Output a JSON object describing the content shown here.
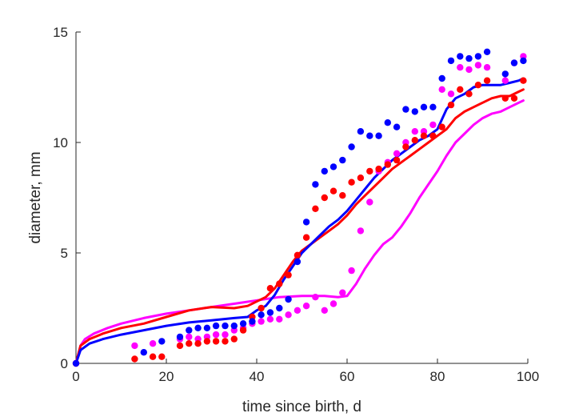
{
  "chart_data": {
    "type": "scatter",
    "xlabel": "time since birth, d",
    "ylabel": "diameter, mm",
    "xlim": [
      0,
      100
    ],
    "ylim": [
      0,
      15
    ],
    "xticks": [
      0,
      20,
      40,
      60,
      80,
      100
    ],
    "yticks": [
      0,
      5,
      10,
      15
    ],
    "grid": false,
    "series": [
      {
        "color": "#ff00ff",
        "points": [
          [
            0,
            0
          ],
          [
            13,
            0.8
          ],
          [
            17,
            0.9
          ],
          [
            23,
            1.1
          ],
          [
            25,
            1.2
          ],
          [
            27,
            1.1
          ],
          [
            29,
            1.2
          ],
          [
            31,
            1.3
          ],
          [
            33,
            1.3
          ],
          [
            35,
            1.5
          ],
          [
            37,
            1.6
          ],
          [
            39,
            1.8
          ],
          [
            41,
            1.9
          ],
          [
            43,
            2.0
          ],
          [
            45,
            2.0
          ],
          [
            47,
            2.2
          ],
          [
            49,
            2.4
          ],
          [
            51,
            2.6
          ],
          [
            53,
            3.0
          ],
          [
            55,
            2.4
          ],
          [
            57,
            2.7
          ],
          [
            59,
            3.2
          ],
          [
            61,
            4.2
          ],
          [
            63,
            6.0
          ],
          [
            65,
            7.3
          ],
          [
            67,
            8.7
          ],
          [
            69,
            9.1
          ],
          [
            71,
            9.5
          ],
          [
            73,
            10.0
          ],
          [
            75,
            10.5
          ],
          [
            77,
            10.5
          ],
          [
            79,
            10.8
          ],
          [
            81,
            12.4
          ],
          [
            83,
            12.2
          ],
          [
            85,
            13.4
          ],
          [
            87,
            13.3
          ],
          [
            89,
            13.5
          ],
          [
            91,
            13.4
          ],
          [
            95,
            12.8
          ],
          [
            97,
            13.6
          ],
          [
            99,
            13.9
          ]
        ],
        "curve": [
          [
            0,
            0
          ],
          [
            1,
            0.8
          ],
          [
            2,
            1.1
          ],
          [
            4,
            1.35
          ],
          [
            7,
            1.6
          ],
          [
            10,
            1.8
          ],
          [
            15,
            2.05
          ],
          [
            20,
            2.25
          ],
          [
            25,
            2.4
          ],
          [
            30,
            2.55
          ],
          [
            35,
            2.7
          ],
          [
            40,
            2.85
          ],
          [
            45,
            3.0
          ],
          [
            50,
            3.05
          ],
          [
            55,
            3.05
          ],
          [
            58,
            3.0
          ],
          [
            60,
            3.05
          ],
          [
            62,
            3.6
          ],
          [
            64,
            4.3
          ],
          [
            66,
            4.9
          ],
          [
            68,
            5.4
          ],
          [
            70,
            5.7
          ],
          [
            72,
            6.2
          ],
          [
            74,
            6.8
          ],
          [
            76,
            7.5
          ],
          [
            78,
            8.1
          ],
          [
            80,
            8.7
          ],
          [
            82,
            9.4
          ],
          [
            84,
            10.0
          ],
          [
            86,
            10.4
          ],
          [
            88,
            10.8
          ],
          [
            90,
            11.1
          ],
          [
            92,
            11.3
          ],
          [
            94,
            11.4
          ],
          [
            96,
            11.6
          ],
          [
            98,
            11.8
          ],
          [
            99,
            11.9
          ]
        ]
      },
      {
        "color": "#ff0000",
        "points": [
          [
            0,
            0
          ],
          [
            13,
            0.2
          ],
          [
            17,
            0.3
          ],
          [
            19,
            0.3
          ],
          [
            23,
            0.8
          ],
          [
            25,
            0.9
          ],
          [
            27,
            0.9
          ],
          [
            29,
            1.0
          ],
          [
            31,
            1.0
          ],
          [
            33,
            1.0
          ],
          [
            35,
            1.1
          ],
          [
            37,
            1.5
          ],
          [
            39,
            2.1
          ],
          [
            41,
            2.5
          ],
          [
            43,
            3.4
          ],
          [
            45,
            3.6
          ],
          [
            47,
            4.0
          ],
          [
            49,
            4.9
          ],
          [
            51,
            5.7
          ],
          [
            53,
            7.0
          ],
          [
            55,
            7.5
          ],
          [
            57,
            7.8
          ],
          [
            59,
            7.6
          ],
          [
            61,
            8.2
          ],
          [
            63,
            8.4
          ],
          [
            65,
            8.7
          ],
          [
            67,
            8.8
          ],
          [
            69,
            9.0
          ],
          [
            71,
            9.2
          ],
          [
            73,
            9.8
          ],
          [
            75,
            10.1
          ],
          [
            77,
            10.3
          ],
          [
            79,
            10.3
          ],
          [
            81,
            10.7
          ],
          [
            83,
            11.7
          ],
          [
            85,
            12.4
          ],
          [
            87,
            12.2
          ],
          [
            89,
            12.6
          ],
          [
            91,
            12.8
          ],
          [
            95,
            12.0
          ],
          [
            97,
            12.0
          ],
          [
            99,
            12.8
          ]
        ],
        "curve": [
          [
            0,
            0
          ],
          [
            1,
            0.8
          ],
          [
            3,
            1.1
          ],
          [
            6,
            1.35
          ],
          [
            10,
            1.6
          ],
          [
            15,
            1.8
          ],
          [
            20,
            2.1
          ],
          [
            25,
            2.4
          ],
          [
            30,
            2.55
          ],
          [
            35,
            2.5
          ],
          [
            38,
            2.6
          ],
          [
            40,
            2.8
          ],
          [
            42,
            3.0
          ],
          [
            44,
            3.4
          ],
          [
            46,
            4.0
          ],
          [
            48,
            4.6
          ],
          [
            50,
            5.1
          ],
          [
            52,
            5.4
          ],
          [
            54,
            5.7
          ],
          [
            56,
            6.0
          ],
          [
            58,
            6.3
          ],
          [
            60,
            6.7
          ],
          [
            62,
            7.2
          ],
          [
            64,
            7.6
          ],
          [
            66,
            8.0
          ],
          [
            68,
            8.4
          ],
          [
            70,
            8.8
          ],
          [
            72,
            9.1
          ],
          [
            74,
            9.4
          ],
          [
            76,
            9.7
          ],
          [
            78,
            10.0
          ],
          [
            80,
            10.3
          ],
          [
            82,
            10.6
          ],
          [
            84,
            11.1
          ],
          [
            86,
            11.4
          ],
          [
            88,
            11.6
          ],
          [
            90,
            11.8
          ],
          [
            92,
            12.0
          ],
          [
            94,
            12.1
          ],
          [
            96,
            12.1
          ],
          [
            98,
            12.3
          ],
          [
            99,
            12.4
          ]
        ]
      },
      {
        "color": "#0000ff",
        "points": [
          [
            0,
            0
          ],
          [
            15,
            0.5
          ],
          [
            19,
            1.0
          ],
          [
            23,
            1.2
          ],
          [
            25,
            1.5
          ],
          [
            27,
            1.6
          ],
          [
            29,
            1.6
          ],
          [
            31,
            1.7
          ],
          [
            33,
            1.7
          ],
          [
            35,
            1.7
          ],
          [
            37,
            1.8
          ],
          [
            39,
            1.9
          ],
          [
            41,
            2.2
          ],
          [
            43,
            2.3
          ],
          [
            45,
            2.5
          ],
          [
            47,
            2.9
          ],
          [
            49,
            4.6
          ],
          [
            51,
            6.4
          ],
          [
            53,
            8.1
          ],
          [
            55,
            8.7
          ],
          [
            57,
            8.9
          ],
          [
            59,
            9.2
          ],
          [
            61,
            9.8
          ],
          [
            63,
            10.5
          ],
          [
            65,
            10.3
          ],
          [
            67,
            10.3
          ],
          [
            69,
            10.9
          ],
          [
            71,
            10.7
          ],
          [
            73,
            11.5
          ],
          [
            75,
            11.4
          ],
          [
            77,
            11.6
          ],
          [
            79,
            11.6
          ],
          [
            81,
            12.9
          ],
          [
            83,
            13.7
          ],
          [
            85,
            13.9
          ],
          [
            87,
            13.8
          ],
          [
            89,
            13.9
          ],
          [
            91,
            14.1
          ],
          [
            95,
            13.1
          ],
          [
            97,
            13.6
          ],
          [
            99,
            13.7
          ]
        ],
        "curve": [
          [
            0,
            0
          ],
          [
            1,
            0.6
          ],
          [
            3,
            0.9
          ],
          [
            6,
            1.1
          ],
          [
            10,
            1.3
          ],
          [
            15,
            1.5
          ],
          [
            20,
            1.7
          ],
          [
            25,
            1.85
          ],
          [
            30,
            1.95
          ],
          [
            35,
            2.05
          ],
          [
            38,
            2.1
          ],
          [
            40,
            2.4
          ],
          [
            42,
            2.6
          ],
          [
            44,
            3.1
          ],
          [
            46,
            3.8
          ],
          [
            48,
            4.4
          ],
          [
            50,
            5.0
          ],
          [
            52,
            5.4
          ],
          [
            54,
            5.8
          ],
          [
            56,
            6.2
          ],
          [
            58,
            6.5
          ],
          [
            60,
            6.9
          ],
          [
            62,
            7.4
          ],
          [
            64,
            7.9
          ],
          [
            66,
            8.4
          ],
          [
            68,
            8.8
          ],
          [
            70,
            9.2
          ],
          [
            72,
            9.5
          ],
          [
            74,
            9.8
          ],
          [
            76,
            10.1
          ],
          [
            78,
            10.3
          ],
          [
            80,
            10.6
          ],
          [
            82,
            11.5
          ],
          [
            84,
            12.0
          ],
          [
            86,
            12.2
          ],
          [
            88,
            12.5
          ],
          [
            90,
            12.6
          ],
          [
            92,
            12.6
          ],
          [
            94,
            12.6
          ],
          [
            96,
            12.7
          ],
          [
            98,
            12.8
          ],
          [
            99,
            12.9
          ]
        ]
      }
    ]
  }
}
